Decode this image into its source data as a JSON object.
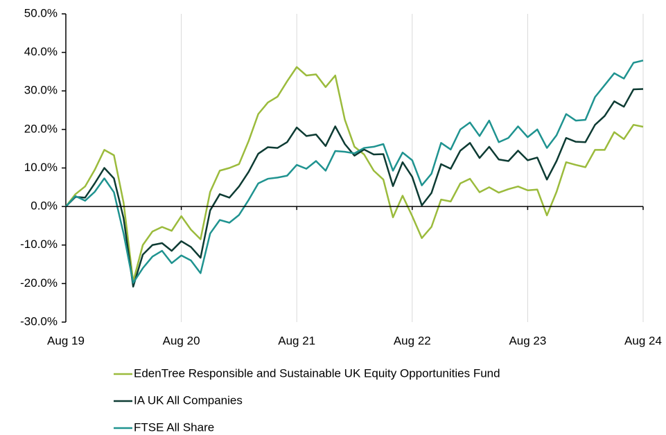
{
  "chart_data": {
    "type": "line",
    "categories": [
      "Aug 19",
      null,
      null,
      null,
      null,
      null,
      null,
      null,
      null,
      null,
      null,
      null,
      "Aug 20",
      null,
      null,
      null,
      null,
      null,
      null,
      null,
      null,
      null,
      null,
      null,
      "Aug 21",
      null,
      null,
      null,
      null,
      null,
      null,
      null,
      null,
      null,
      null,
      null,
      "Aug 22",
      null,
      null,
      null,
      null,
      null,
      null,
      null,
      null,
      null,
      null,
      null,
      "Aug 23",
      null,
      null,
      null,
      null,
      null,
      null,
      null,
      null,
      null,
      null,
      null,
      "Aug 24"
    ],
    "series": [
      {
        "name": "EdenTree Responsible and Sustainable UK Equity Opportunities Fund",
        "color": "#9bbb3c",
        "values": [
          0,
          3.2,
          5.2,
          9.5,
          14.7,
          13.3,
          1,
          -19.5,
          -10,
          -6.5,
          -5.3,
          -6.3,
          -2.5,
          -6,
          -8.5,
          3.8,
          9.3,
          10,
          11,
          17,
          24,
          27,
          28.5,
          32.5,
          36.2,
          34,
          34.3,
          31,
          34,
          22.5,
          15.5,
          13.5,
          9.3,
          7,
          -2.8,
          2.8,
          -2.5,
          -8.2,
          -5.3,
          1.8,
          1.3,
          6,
          7.2,
          3.7,
          5,
          3.6,
          4.5,
          5.2,
          4.2,
          4.4,
          -2.3,
          3.8,
          11.5,
          10.8,
          10.2,
          14.7,
          14.7,
          19.3,
          17.5,
          21.2,
          20.7
        ]
      },
      {
        "name": "IA UK All Companies",
        "color": "#0d3b33",
        "values": [
          0,
          2.5,
          2.3,
          6,
          10,
          7.3,
          -3,
          -20.8,
          -12.5,
          -10,
          -9.5,
          -11.5,
          -9,
          -10.5,
          -13.3,
          -1,
          3.2,
          2.3,
          5.2,
          9,
          13.7,
          15.4,
          15.2,
          16.7,
          20.5,
          18.3,
          18.7,
          15.7,
          20.8,
          16.2,
          13.2,
          14.8,
          13.5,
          13.6,
          5.3,
          11.5,
          7.7,
          0.3,
          3.5,
          11,
          9.8,
          14.5,
          16.5,
          12.6,
          15.5,
          12.2,
          11.8,
          14.5,
          12,
          12.7,
          7,
          11.8,
          17.8,
          16.8,
          16.7,
          21.2,
          23.5,
          27.3,
          25.9,
          30.4,
          30.5
        ]
      },
      {
        "name": "FTSE All Share",
        "color": "#1f9390",
        "values": [
          0,
          2.7,
          1.5,
          3.8,
          7.3,
          3.7,
          -7,
          -19.8,
          -16,
          -13,
          -11.5,
          -14.7,
          -12.7,
          -14,
          -17.3,
          -7,
          -3.5,
          -4.2,
          -2.2,
          1.7,
          6,
          7.2,
          7.5,
          8,
          10.8,
          9.8,
          11.8,
          9.3,
          14.4,
          14.2,
          13.8,
          15.2,
          15.5,
          16.2,
          9.3,
          14,
          12,
          5.5,
          8.5,
          16.5,
          14.8,
          20,
          21.8,
          18.3,
          22.3,
          16.7,
          17.8,
          20.8,
          18,
          20,
          15.2,
          18.5,
          24,
          22.3,
          22.5,
          28.4,
          31.5,
          34.6,
          33.2,
          37.3,
          37.9
        ]
      }
    ],
    "ylim": [
      -30,
      50
    ],
    "yticks": [
      {
        "value": -30,
        "label": "-30.0%"
      },
      {
        "value": -20,
        "label": "-20.0%"
      },
      {
        "value": -10,
        "label": "-10.0%"
      },
      {
        "value": 0,
        "label": "0.0%"
      },
      {
        "value": 10,
        "label": "10.0%"
      },
      {
        "value": 20,
        "label": "20.0%"
      },
      {
        "value": 30,
        "label": "30.0%"
      },
      {
        "value": 40,
        "label": "40.0%"
      },
      {
        "value": 50,
        "label": "50.0%"
      }
    ],
    "grid": true,
    "legend": "bottom"
  }
}
